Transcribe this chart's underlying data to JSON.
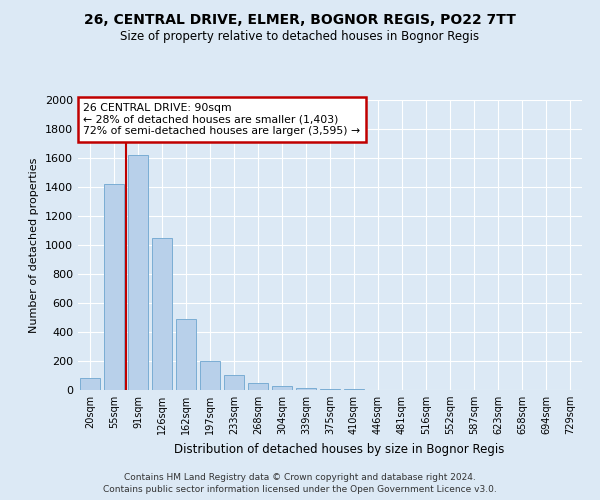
{
  "title_line1": "26, CENTRAL DRIVE, ELMER, BOGNOR REGIS, PO22 7TT",
  "title_line2": "Size of property relative to detached houses in Bognor Regis",
  "xlabel": "Distribution of detached houses by size in Bognor Regis",
  "ylabel": "Number of detached properties",
  "categories": [
    "20sqm",
    "55sqm",
    "91sqm",
    "126sqm",
    "162sqm",
    "197sqm",
    "233sqm",
    "268sqm",
    "304sqm",
    "339sqm",
    "375sqm",
    "410sqm",
    "446sqm",
    "481sqm",
    "516sqm",
    "552sqm",
    "587sqm",
    "623sqm",
    "658sqm",
    "694sqm",
    "729sqm"
  ],
  "values": [
    80,
    1420,
    1620,
    1050,
    490,
    200,
    105,
    50,
    30,
    15,
    8,
    5,
    3,
    2,
    1,
    1,
    0,
    0,
    0,
    0,
    0
  ],
  "bar_color": "#b8d0ea",
  "bar_edge_color": "#7aadd4",
  "vline_color": "#c00000",
  "annotation_text": "26 CENTRAL DRIVE: 90sqm\n← 28% of detached houses are smaller (1,403)\n72% of semi-detached houses are larger (3,595) →",
  "annotation_box_color": "#c00000",
  "ylim": [
    0,
    2000
  ],
  "yticks": [
    0,
    200,
    400,
    600,
    800,
    1000,
    1200,
    1400,
    1600,
    1800,
    2000
  ],
  "footnote1": "Contains HM Land Registry data © Crown copyright and database right 2024.",
  "footnote2": "Contains public sector information licensed under the Open Government Licence v3.0.",
  "bg_color": "#dce9f5",
  "plot_bg_color": "#dce9f5",
  "grid_color": "#ffffff"
}
